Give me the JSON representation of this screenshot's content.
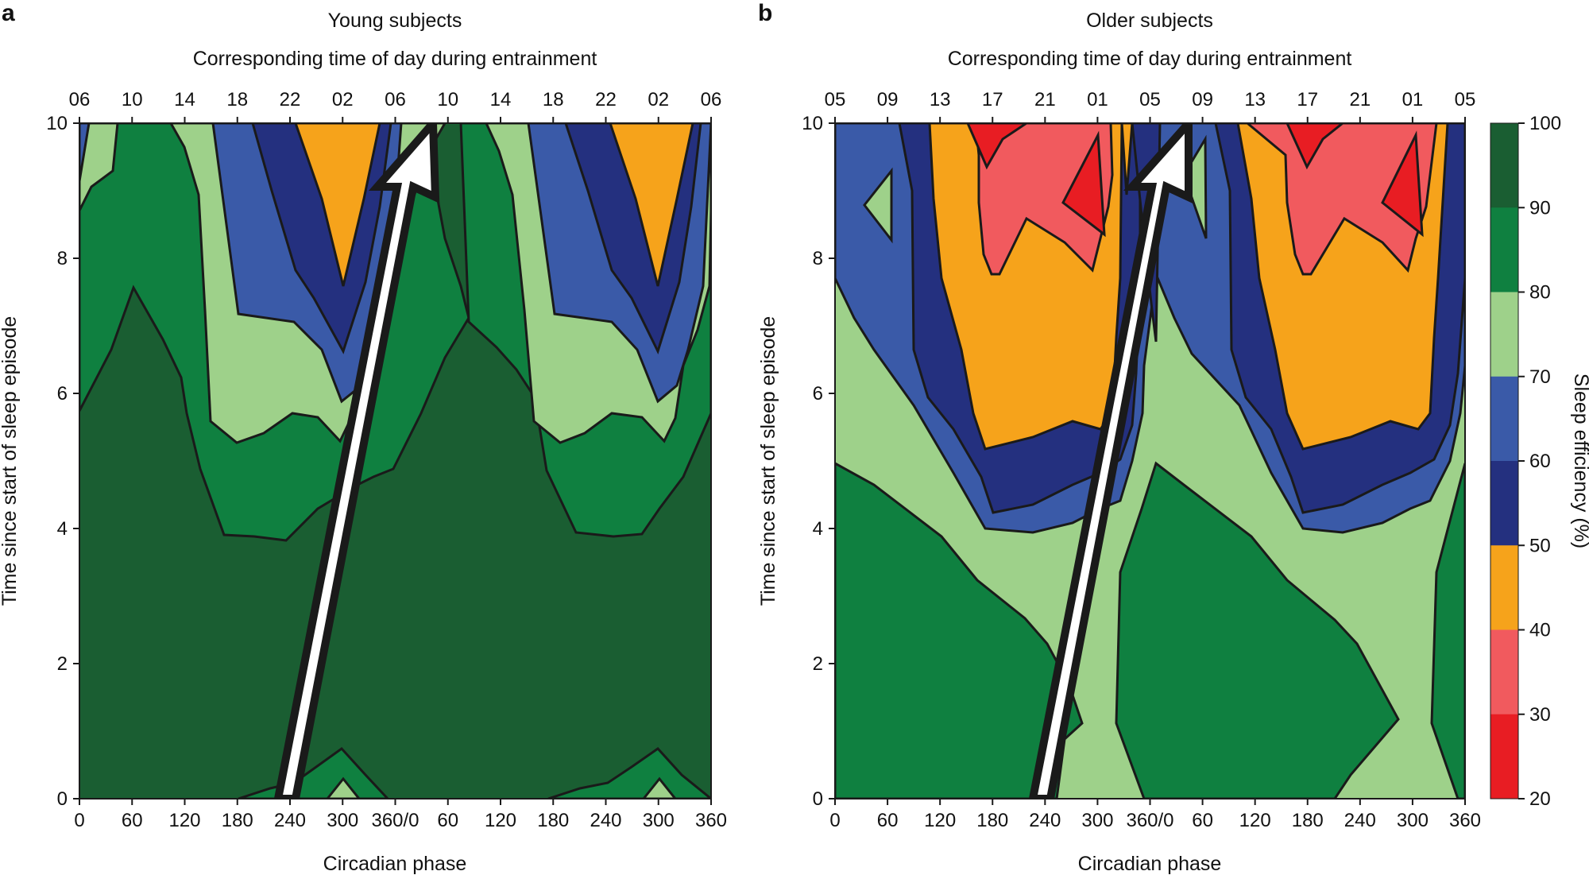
{
  "chart_data": [
    {
      "type": "heatmap",
      "panel_letter": "a",
      "title": "Young subjects",
      "top_axis_label": "Corresponding time of day during entrainment",
      "top_tick_labels": [
        "06",
        "10",
        "14",
        "18",
        "22",
        "02",
        "06",
        "10",
        "14",
        "18",
        "22",
        "02",
        "06"
      ],
      "xlabel": "Circadian phase",
      "x_tick_labels": [
        "0",
        "60",
        "120",
        "180",
        "240",
        "300",
        "360/0",
        "60",
        "120",
        "180",
        "240",
        "300",
        "360"
      ],
      "ylabel": "Time since start of sleep episode",
      "y_tick_labels": [
        "0",
        "2",
        "4",
        "6",
        "8",
        "10"
      ],
      "xlim": [
        0,
        720
      ],
      "ylim": [
        0,
        10
      ],
      "arrow": {
        "from": [
          215,
          0
        ],
        "to": [
          422,
          10
        ],
        "meaning": "direction of progression"
      },
      "contours": [
        {
          "level": 60,
          "x": [
            0,
            0,
            8,
            10
          ],
          "y": [
            10,
            8.7,
            10,
            10
          ]
        },
        {
          "level": 70,
          "x": [
            0,
            0,
            16,
            32,
            32,
            22
          ],
          "y": [
            10,
            7.8,
            8.8,
            10,
            10,
            10
          ]
        },
        {
          "level": 70,
          "x": [
            132,
            150,
            168,
            176,
            180,
            195,
            210,
            250,
            285,
            315,
            330,
            342,
            350,
            360,
            372,
            392,
            420,
            430
          ],
          "y": [
            10,
            9.0,
            8.2,
            6.2,
            5.3,
            5.4,
            5.6,
            5.3,
            5.25,
            5.6,
            6.2,
            7.5,
            8.7,
            8.7,
            8.8,
            9.6,
            10,
            10
          ]
        },
        {
          "level": 80,
          "x": [
            0,
            0,
            30,
            64,
            96,
            112,
            122,
            138,
            160,
            200,
            226,
            258,
            280,
            300,
            320,
            330
          ],
          "y": [
            10,
            5.7,
            6.6,
            7.6,
            6.7,
            6.0,
            5.3,
            4.5,
            4.0,
            3.85,
            4.2,
            4.55,
            4.8,
            5.1,
            5.5,
            6.0
          ]
        },
        {
          "level": 60,
          "x": [
            180,
            200,
            222,
            240,
            262,
            288,
            300,
            318,
            330,
            335,
            325,
            315,
            300,
            288,
            270,
            250,
            230,
            200
          ],
          "y": [
            10,
            8.5,
            7.4,
            7.0,
            6.3,
            5.8,
            5.8,
            6.0,
            6.4,
            7.8,
            9.0,
            10,
            10,
            10,
            10,
            10,
            10,
            10
          ]
        },
        {
          "level": 50,
          "x": [
            236,
            250,
            262,
            280,
            300,
            318,
            325,
            340,
            330,
            315,
            300,
            287,
            270,
            250
          ],
          "y": [
            10,
            8.2,
            7.8,
            7.2,
            6.6,
            7.3,
            8.4,
            10,
            10,
            10,
            10,
            10,
            10,
            10
          ]
        },
        {
          "level": 40,
          "x": [
            273,
            285,
            298,
            310,
            322,
            330,
            320,
            300,
            285
          ],
          "y": [
            10,
            9.0,
            7.6,
            9.0,
            9.7,
            10,
            10,
            10,
            10
          ]
        },
        {
          "level": 90,
          "x": [
            176,
            208,
            240,
            260,
            280,
            300,
            315,
            322,
            335,
            330,
            320,
            300,
            280,
            260,
            240,
            220,
            200
          ],
          "y": [
            0,
            0.05,
            0.25,
            0.35,
            0.55,
            0.75,
            0.5,
            0.3,
            0.15,
            0,
            0,
            0,
            0,
            0,
            0,
            0,
            0
          ]
        },
        {
          "level": 80,
          "x": [
            290,
            300,
            312,
            318
          ],
          "y": [
            0,
            0.3,
            0.1,
            0
          ]
        }
      ],
      "colorbar": {
        "label": "Sleep efficiency (%)",
        "ticks": [
          "100",
          "90",
          "80",
          "70",
          "60",
          "50",
          "40",
          "30",
          "20"
        ],
        "colors": [
          "#1a5e32",
          "#0f8040",
          "#9ed18a",
          "#3a5aa8",
          "#24307f",
          "#f6a31b",
          "#f15a5e",
          "#e81d23"
        ]
      }
    },
    {
      "type": "heatmap",
      "panel_letter": "b",
      "title": "Older subjects",
      "top_axis_label": "Corresponding time of day during entrainment",
      "top_tick_labels": [
        "05",
        "09",
        "13",
        "17",
        "21",
        "01",
        "05",
        "09",
        "13",
        "17",
        "21",
        "01",
        "05"
      ],
      "xlabel": "Circadian phase",
      "x_tick_labels": [
        "0",
        "60",
        "120",
        "180",
        "240",
        "300",
        "360/0",
        "60",
        "120",
        "180",
        "240",
        "300",
        "360"
      ],
      "ylabel": "Time since start of sleep episode",
      "y_tick_labels": [
        "0",
        "2",
        "4",
        "6",
        "8",
        "10"
      ],
      "xlim": [
        0,
        720
      ],
      "ylim": [
        0,
        10
      ],
      "arrow": {
        "from": [
          215,
          0
        ],
        "to": [
          422,
          10
        ],
        "meaning": "direction of progression"
      }
    }
  ],
  "colors": {
    "c90_100": "#1a5e32",
    "c80_90": "#0f8040",
    "c70_80": "#9ed18a",
    "c60_70": "#3a5aa8",
    "c50_60": "#24307f",
    "c40_50": "#f6a31b",
    "c30_40": "#f15a5e",
    "c20_30": "#e81d23"
  }
}
